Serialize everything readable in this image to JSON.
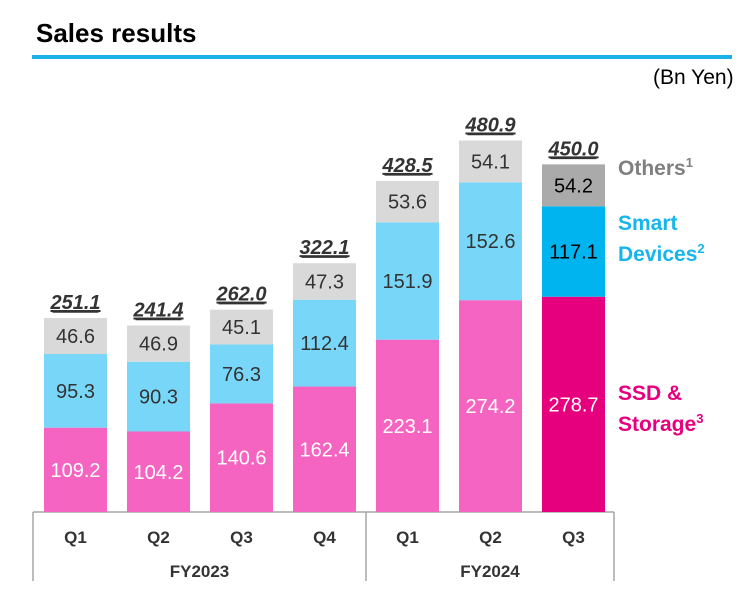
{
  "title": "Sales results",
  "unit": "(Bn Yen)",
  "colors": {
    "rule": "#1ab0e8",
    "ssd": "#f564c0",
    "ssd_highlight": "#e6007e",
    "smart": "#78d7f9",
    "smart_highlight": "#00b4ef",
    "others": "#d9d9d9",
    "others_highlight": "#aaaaaa",
    "legend_others": "#808080",
    "legend_smart": "#16b5ec",
    "legend_ssd": "#e6007e",
    "axis": "#a6a6a6"
  },
  "legend": {
    "others": {
      "label": "Others",
      "sup": "1"
    },
    "smart": {
      "line1": "Smart",
      "line2": "Devices",
      "sup": "2"
    },
    "ssd": {
      "line1": "SSD &",
      "line2": "Storage",
      "sup": "3"
    }
  },
  "chart_data": {
    "type": "bar",
    "stacked": true,
    "categories": [
      "Q1",
      "Q2",
      "Q3",
      "Q4",
      "Q1",
      "Q2",
      "Q3"
    ],
    "groups": [
      {
        "label": "FY2023",
        "categories": [
          "Q1",
          "Q2",
          "Q3",
          "Q4"
        ]
      },
      {
        "label": "FY2024",
        "categories": [
          "Q1",
          "Q2",
          "Q3"
        ]
      }
    ],
    "series": [
      {
        "name": "SSD & Storage",
        "values": [
          109.2,
          104.2,
          140.6,
          162.4,
          223.1,
          274.2,
          278.7
        ]
      },
      {
        "name": "Smart Devices",
        "values": [
          95.3,
          90.3,
          76.3,
          112.4,
          151.9,
          152.6,
          117.1
        ]
      },
      {
        "name": "Others",
        "values": [
          46.6,
          46.9,
          45.1,
          47.3,
          53.6,
          54.1,
          54.2
        ]
      }
    ],
    "labels": [
      [
        "109.2",
        "104.2",
        "140.6",
        "162.4",
        "223.1",
        "274.2",
        "278.7"
      ],
      [
        "95.3",
        "90.3",
        "76.3",
        "112.4",
        "151.9",
        "152.6",
        "117.1"
      ],
      [
        "46.6",
        "46.9",
        "45.1",
        "47.3",
        "53.6",
        "54.1",
        "54.2"
      ]
    ],
    "totals": [
      "251.1",
      "241.4",
      "262.0",
      "322.1",
      "428.5",
      "480.9",
      "450.0"
    ],
    "highlight_index": 6,
    "ylabel": "",
    "xlabel": ""
  }
}
